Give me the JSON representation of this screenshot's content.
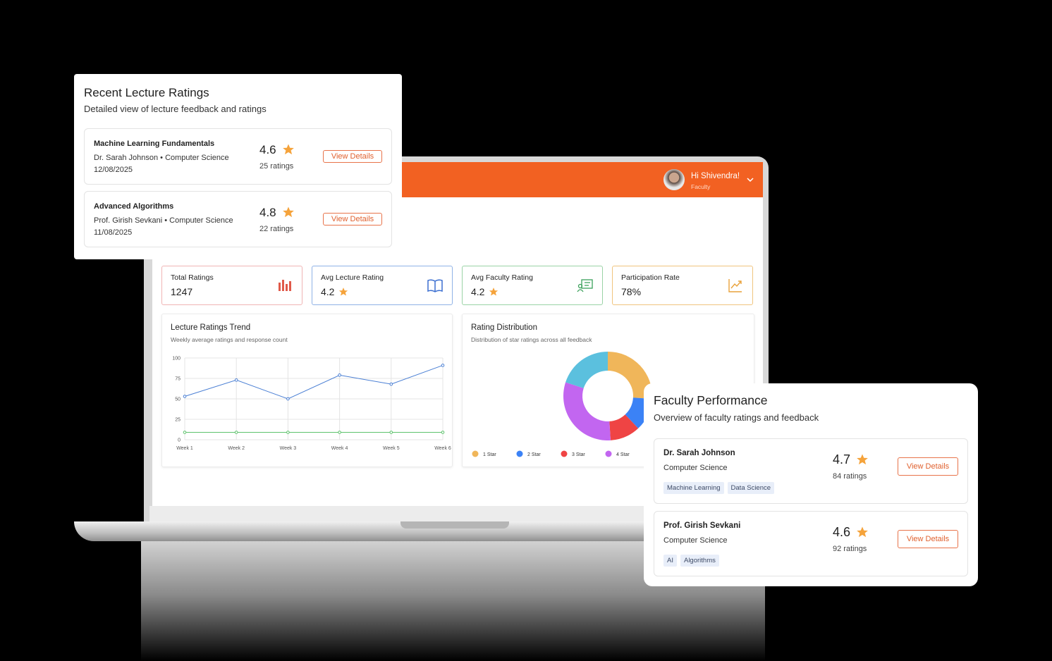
{
  "header": {
    "greeting": "Hi Shivendra!",
    "role": "Faculty"
  },
  "stats": [
    {
      "label": "Total Ratings",
      "value": 1247
    },
    {
      "label": "Avg Lecture Rating",
      "value": 4.2
    },
    {
      "label": "Avg Faculty Rating",
      "value": 4.2
    },
    {
      "label": "Participation Rate",
      "value": "78%"
    }
  ],
  "chart_data": [
    {
      "type": "line",
      "title": "Lecture Ratings Trend",
      "subtitle": "Weekly average ratings and response count",
      "categories": [
        "Week 1",
        "Week 2",
        "Week 3",
        "Week 4",
        "Week 5",
        "Week 6"
      ],
      "series": [
        {
          "color": "#4a7fd4",
          "values": [
            53,
            73,
            50,
            79,
            68,
            91
          ]
        },
        {
          "color": "#5cc26b",
          "values": [
            9,
            9,
            9,
            9,
            9,
            9
          ]
        }
      ],
      "ylim": [
        0,
        100
      ],
      "yticks": [
        0,
        25,
        50,
        75,
        100
      ],
      "grid": true
    },
    {
      "type": "pie",
      "title": "Rating Distribution",
      "subtitle": "Distribution of star ratings across all feedback",
      "categories": [
        "1 Star",
        "2 Star",
        "3 Star",
        "4 Star",
        null
      ],
      "colors": [
        "#f0b65a",
        "#3b82f6",
        "#ef4444",
        "#c266f0",
        "#5bc0de"
      ],
      "values": [
        26,
        12,
        11,
        31,
        20
      ],
      "donut": true
    }
  ],
  "lecture_ratings": {
    "title": "Recent Lecture Ratings",
    "subtitle": "Detailed view of lecture feedback and ratings",
    "items": [
      {
        "name": "Machine Learning Fundamentals",
        "meta": "Dr. Sarah Johnson • Computer Science",
        "date": "12/08/2025",
        "rating": 4.6,
        "count": "25 ratings",
        "button": "View Details"
      },
      {
        "name": "Advanced Algorithms",
        "meta": "Prof. Girish Sevkani • Computer Science",
        "date": "11/08/2025",
        "rating": 4.8,
        "count": "22 ratings",
        "button": "View Details"
      }
    ]
  },
  "faculty_performance": {
    "title": "Faculty Performance",
    "subtitle": "Overview of faculty ratings and feedback",
    "items": [
      {
        "name": "Dr. Sarah Johnson",
        "department": "Computer Science",
        "tags": [
          "Machine Learning",
          "Data Science"
        ],
        "rating": 4.7,
        "count": "84 ratings",
        "button": "View Details"
      },
      {
        "name": "Prof. Girish Sevkani",
        "department": "Computer Science",
        "tags": [
          "AI",
          "Algorithms"
        ],
        "rating": 4.6,
        "count": "92 ratings",
        "button": "View Details"
      }
    ]
  }
}
